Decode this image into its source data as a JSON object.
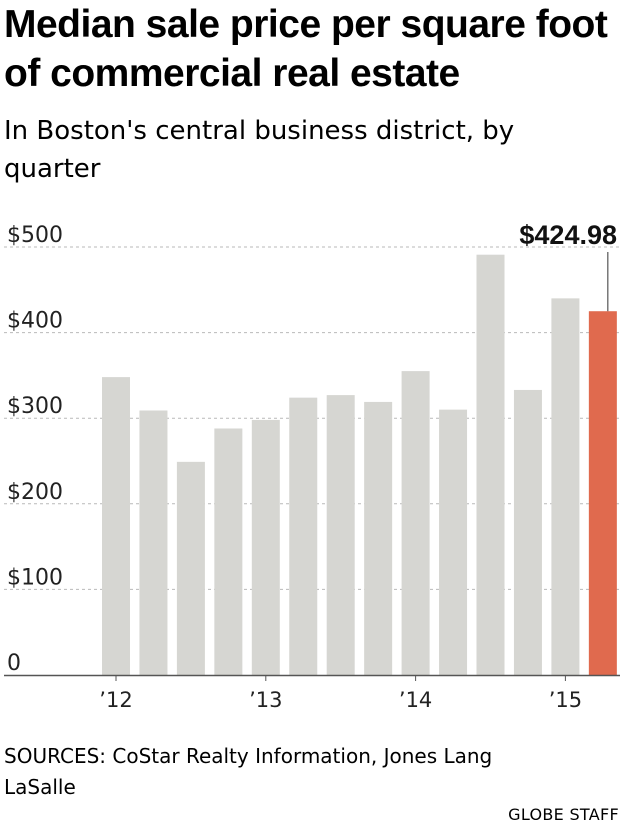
{
  "chart_data": {
    "type": "bar",
    "title": "Median sale price per square foot of commercial real estate",
    "subtitle": "In Boston's central business district, by quarter",
    "categories": [
      "Q1 '12",
      "Q2 '12",
      "Q3 '12",
      "Q4 '12",
      "Q1 '13",
      "Q2 '13",
      "Q3 '13",
      "Q4 '13",
      "Q1 '14",
      "Q2 '14",
      "Q3 '14",
      "Q4 '14",
      "Q1 '15",
      "Q2 '15"
    ],
    "values": [
      348,
      309,
      249,
      288,
      298,
      324,
      327,
      319,
      355,
      310,
      491,
      333,
      440,
      424.98
    ],
    "ylim": [
      0,
      500
    ],
    "y_ticks": [
      {
        "value": 0,
        "label": "0"
      },
      {
        "value": 100,
        "label": "$100"
      },
      {
        "value": 200,
        "label": "$200"
      },
      {
        "value": 300,
        "label": "$300"
      },
      {
        "value": 400,
        "label": "$400"
      },
      {
        "value": 500,
        "label": "$500"
      }
    ],
    "x_ticks": [
      {
        "index": 0,
        "label": "’12"
      },
      {
        "index": 4,
        "label": "’13"
      },
      {
        "index": 8,
        "label": "’14"
      },
      {
        "index": 12,
        "label": "’15"
      }
    ],
    "annotation": {
      "index": 13,
      "label": "$424.98"
    },
    "grid": true,
    "bar_color": "#d6d6d2",
    "highlight_color": "#e06a4e"
  },
  "source": "SOURCES: CoStar Realty Information, Jones Lang LaSalle",
  "credit": "GLOBE STAFF"
}
